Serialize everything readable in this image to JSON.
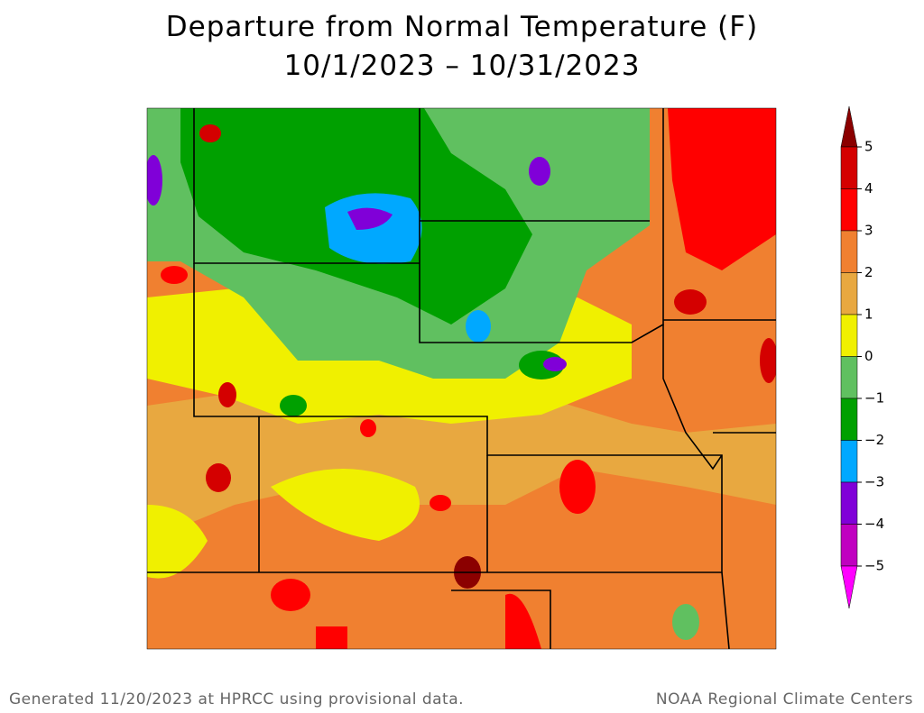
{
  "header": {
    "title": "Departure from Normal Temperature (F)",
    "date_range": "10/1/2023 – 10/31/2023"
  },
  "legend": {
    "labels": [
      "5",
      "4",
      "3",
      "2",
      "1",
      "0",
      "−1",
      "−2",
      "−3",
      "−4",
      "−5"
    ],
    "colors": [
      "#8b0000",
      "#d40000",
      "#ff0000",
      "#f08030",
      "#e8a840",
      "#f0f000",
      "#60c060",
      "#00a000",
      "#00a8ff",
      "#8000d8",
      "#c000c0",
      "#ff00ff"
    ]
  },
  "footer": {
    "left": "Generated 11/20/2023 at HPRCC using provisional data.",
    "right": "NOAA Regional Climate Centers"
  }
}
